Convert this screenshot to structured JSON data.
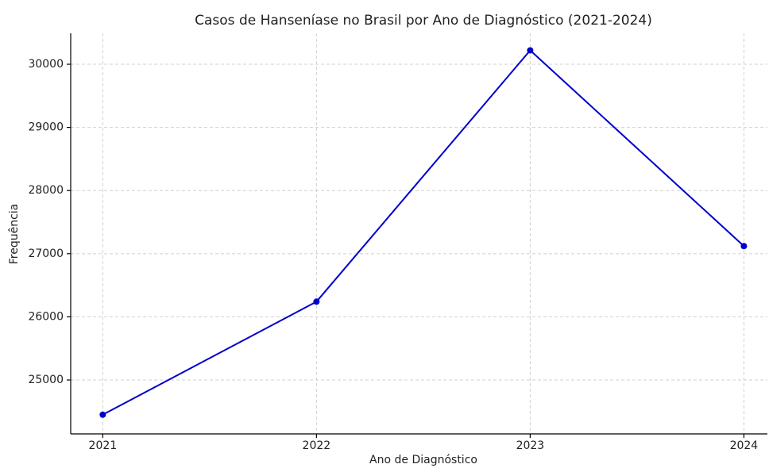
{
  "chart_data": {
    "type": "line",
    "title": "Casos de Hanseníase no Brasil por Ano de Diagnóstico (2021-2024)",
    "xlabel": "Ano de Diagnóstico",
    "ylabel": "Frequência",
    "x": [
      2021,
      2022,
      2023,
      2024
    ],
    "series": [
      {
        "name": "Frequência",
        "color": "#0000cc",
        "values": [
          24450,
          26240,
          30220,
          27120
        ]
      }
    ],
    "xlim": [
      2020.85,
      2024.11
    ],
    "xticks": [
      2021,
      2022,
      2023,
      2024
    ],
    "ylim": [
      24146,
      30490
    ],
    "yticks": [
      25000,
      26000,
      27000,
      28000,
      29000,
      30000
    ],
    "grid": true
  }
}
